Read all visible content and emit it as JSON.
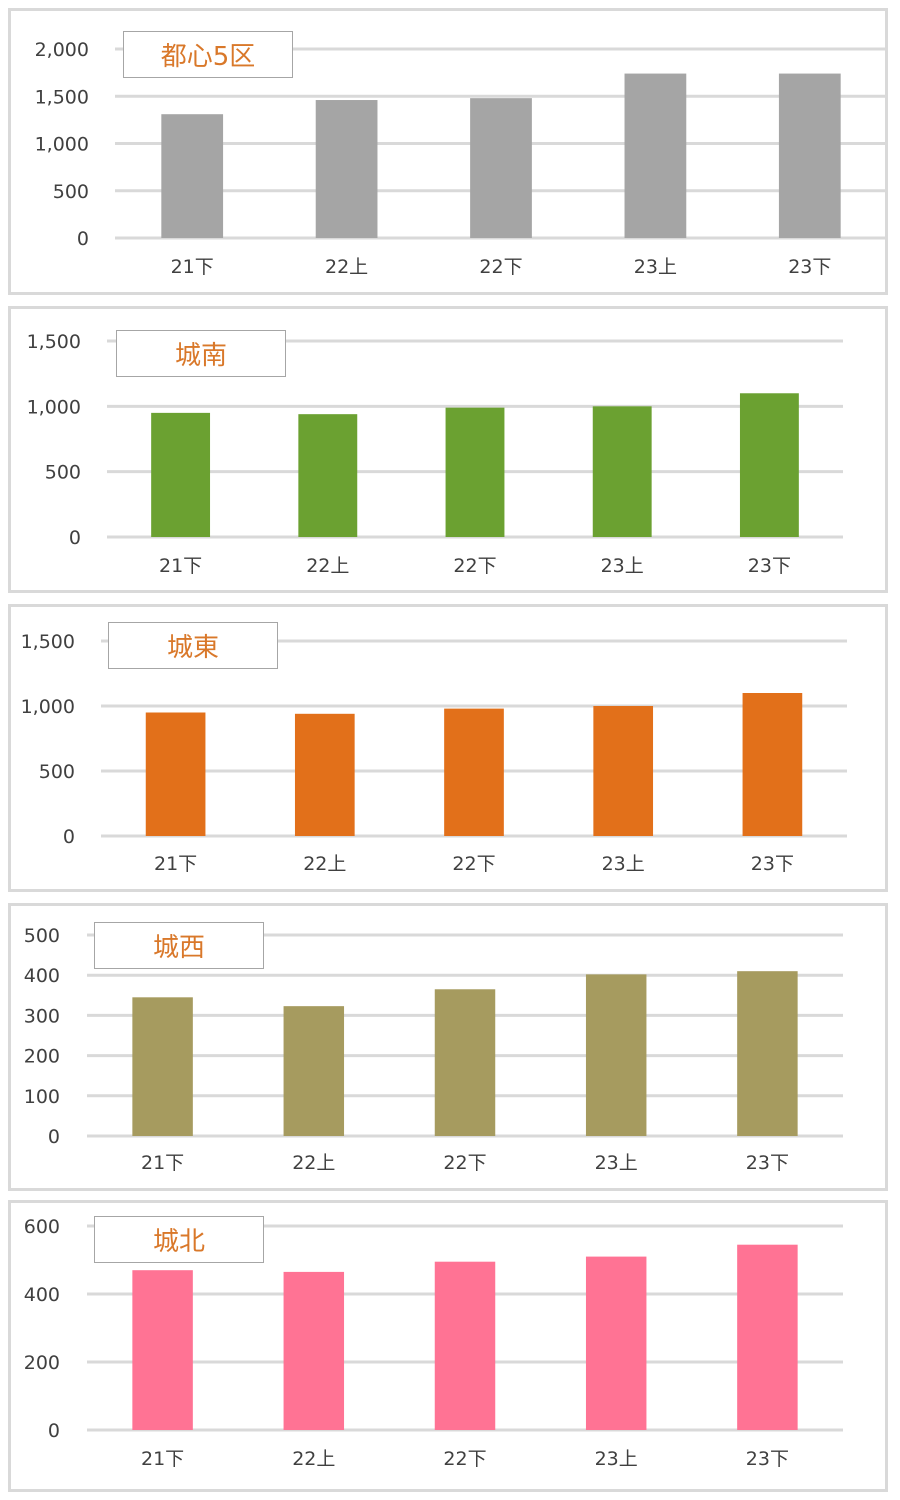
{
  "chart_data": [
    {
      "type": "bar",
      "title": "都心5区",
      "categories": [
        "21下",
        "22上",
        "22下",
        "23上",
        "23下"
      ],
      "values": [
        1310,
        1460,
        1480,
        1740,
        1740
      ],
      "ylim": [
        0,
        2000
      ],
      "yticks": [
        0,
        500,
        1000,
        1500,
        2000
      ],
      "ytick_labels": [
        "0",
        "500",
        "1,000",
        "1,500",
        "2,000"
      ],
      "color": "#a5a5a5",
      "grid": true
    },
    {
      "type": "bar",
      "title": "城南",
      "categories": [
        "21下",
        "22上",
        "22下",
        "23上",
        "23下"
      ],
      "values": [
        950,
        940,
        990,
        1000,
        1100
      ],
      "ylim": [
        0,
        1500
      ],
      "yticks": [
        0,
        500,
        1000,
        1500
      ],
      "ytick_labels": [
        "0",
        "500",
        "1,000",
        "1,500"
      ],
      "color": "#6ba131",
      "grid": true
    },
    {
      "type": "bar",
      "title": "城東",
      "categories": [
        "21下",
        "22上",
        "22下",
        "23上",
        "23下"
      ],
      "values": [
        950,
        940,
        980,
        1000,
        1100
      ],
      "ylim": [
        0,
        1500
      ],
      "yticks": [
        0,
        500,
        1000,
        1500
      ],
      "ytick_labels": [
        "0",
        "500",
        "1,000",
        "1,500"
      ],
      "color": "#e2701a",
      "grid": true
    },
    {
      "type": "bar",
      "title": "城西",
      "categories": [
        "21下",
        "22上",
        "22下",
        "23上",
        "23下"
      ],
      "values": [
        345,
        323,
        365,
        402,
        410
      ],
      "ylim": [
        0,
        500
      ],
      "yticks": [
        0,
        100,
        200,
        300,
        400,
        500
      ],
      "ytick_labels": [
        "0",
        "100",
        "200",
        "300",
        "400",
        "500"
      ],
      "color": "#a69b5f",
      "grid": true
    },
    {
      "type": "bar",
      "title": "城北",
      "categories": [
        "21下",
        "22上",
        "22下",
        "23上",
        "23下"
      ],
      "values": [
        470,
        465,
        495,
        510,
        545
      ],
      "ylim": [
        0,
        600
      ],
      "yticks": [
        0,
        200,
        400,
        600
      ],
      "ytick_labels": [
        "0",
        "200",
        "400",
        "600"
      ],
      "color": "#ff7394",
      "grid": true
    }
  ]
}
